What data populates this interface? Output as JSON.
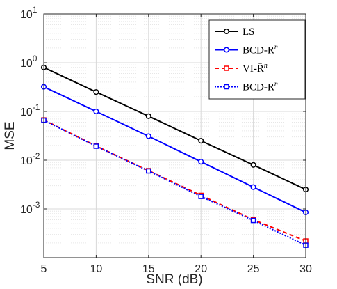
{
  "chart_data": {
    "type": "line",
    "xlabel": "SNR (dB)",
    "ylabel": "MSE",
    "y_scale": "log",
    "grid": true,
    "legend_position": "top-right",
    "xlim": [
      5,
      30
    ],
    "ylim": [
      0.0001,
      10
    ],
    "x": [
      5,
      10,
      15,
      20,
      25,
      30
    ],
    "x_ticks": [
      "5",
      "10",
      "15",
      "20",
      "25",
      "30"
    ],
    "y_ticks": [
      {
        "value": 10,
        "base": "10",
        "exp": "1"
      },
      {
        "value": 1,
        "base": "10",
        "exp": "0"
      },
      {
        "value": 0.1,
        "base": "10",
        "exp": "-1"
      },
      {
        "value": 0.01,
        "base": "10",
        "exp": "-2"
      },
      {
        "value": 0.001,
        "base": "10",
        "exp": "-3"
      }
    ],
    "series": [
      {
        "name": "LS",
        "label_main": "LS",
        "label_sup": "",
        "color": "#000000",
        "dash": "",
        "marker": "circle",
        "values": [
          0.8,
          0.25,
          0.08,
          0.025,
          0.008,
          0.0025
        ]
      },
      {
        "name": "BCD-R̄^n",
        "label_main": "BCD-R̄",
        "label_sup": "n",
        "color": "#0000ff",
        "dash": "",
        "marker": "circle",
        "values": [
          0.32,
          0.1,
          0.031,
          0.0093,
          0.0028,
          0.00085
        ]
      },
      {
        "name": "VI-R̄^n",
        "label_main": "VI-R̄",
        "label_sup": "n",
        "color": "#ff0000",
        "dash": "6,4",
        "marker": "square",
        "values": [
          0.067,
          0.0195,
          0.0061,
          0.0019,
          0.0006,
          0.00022
        ]
      },
      {
        "name": "BCD-R^n",
        "label_main": "BCD-R",
        "label_sup": "n",
        "color": "#0000ff",
        "dash": "2,2",
        "marker": "square",
        "values": [
          0.066,
          0.0193,
          0.006,
          0.0018,
          0.00058,
          0.00018
        ]
      }
    ]
  }
}
